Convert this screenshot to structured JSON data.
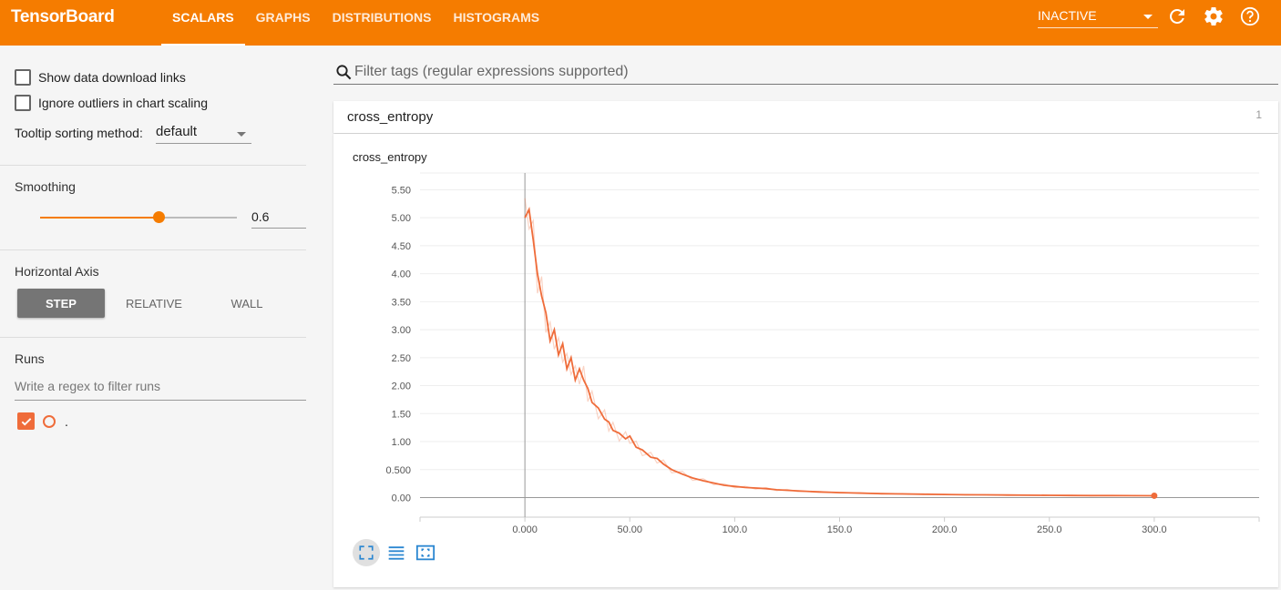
{
  "header": {
    "brand": "TensorBoard",
    "tabs": [
      "SCALARS",
      "GRAPHS",
      "DISTRIBUTIONS",
      "HISTOGRAMS"
    ],
    "active_tab": "SCALARS",
    "run_select": "INACTIVE",
    "icons": [
      "refresh-icon",
      "settings-icon",
      "help-icon"
    ]
  },
  "sidebar": {
    "show_download": "Show data download links",
    "ignore_outliers": "Ignore outliers in chart scaling",
    "tooltip_label": "Tooltip sorting method:",
    "tooltip_value": "default",
    "smoothing_label": "Smoothing",
    "smoothing_value": "0.6",
    "smoothing_fraction": 0.6,
    "horizontal_axis_label": "Horizontal Axis",
    "axis_options": [
      "STEP",
      "RELATIVE",
      "WALL"
    ],
    "axis_selected": "STEP",
    "runs_label": "Runs",
    "runs_filter_placeholder": "Write a regex to filter runs",
    "run_name": ".",
    "run_color": "#ef6c3a"
  },
  "main": {
    "filter_placeholder": "Filter tags (regular expressions supported)",
    "category_name": "cross_entropy",
    "category_count": "1",
    "card_title": "cross_entropy"
  },
  "chart_data": {
    "type": "line",
    "title": "cross_entropy",
    "xlim": [
      -50,
      350
    ],
    "ylim": [
      -0.35,
      5.8
    ],
    "x_ticks": [
      "0.000",
      "50.00",
      "100.0",
      "150.0",
      "200.0",
      "250.0",
      "300.0"
    ],
    "x_tick_values": [
      0,
      50,
      100,
      150,
      200,
      250,
      300
    ],
    "y_ticks": [
      "0.00",
      "0.500",
      "1.00",
      "1.50",
      "2.00",
      "2.50",
      "3.00",
      "3.50",
      "4.00",
      "4.50",
      "5.00",
      "5.50"
    ],
    "y_tick_values": [
      0,
      0.5,
      1,
      1.5,
      2,
      2.5,
      3,
      3.5,
      4,
      4.5,
      5,
      5.5
    ],
    "series": [
      {
        "smoothing": 0.6,
        "color": "#ef6c3a",
        "x": [
          0,
          2,
          4,
          6,
          8,
          10,
          12,
          14,
          16,
          18,
          20,
          22,
          24,
          26,
          28,
          30,
          32,
          35,
          38,
          40,
          42,
          45,
          48,
          50,
          53,
          56,
          60,
          63,
          66,
          70,
          75,
          80,
          85,
          90,
          95,
          100,
          105,
          110,
          115,
          120,
          125,
          130,
          140,
          150,
          160,
          170,
          180,
          190,
          200,
          210,
          220,
          230,
          240,
          250,
          260,
          270,
          280,
          290,
          300
        ],
        "y": [
          5.0,
          5.15,
          4.6,
          4.0,
          3.6,
          3.3,
          2.8,
          3.0,
          2.55,
          2.75,
          2.3,
          2.5,
          2.1,
          2.3,
          2.1,
          1.95,
          1.7,
          1.6,
          1.4,
          1.35,
          1.2,
          1.15,
          1.05,
          1.1,
          0.9,
          0.85,
          0.72,
          0.7,
          0.6,
          0.5,
          0.42,
          0.35,
          0.3,
          0.26,
          0.22,
          0.2,
          0.18,
          0.17,
          0.16,
          0.14,
          0.13,
          0.12,
          0.1,
          0.09,
          0.08,
          0.07,
          0.065,
          0.06,
          0.055,
          0.05,
          0.048,
          0.045,
          0.042,
          0.04,
          0.038,
          0.036,
          0.035,
          0.034,
          0.033
        ]
      }
    ]
  }
}
